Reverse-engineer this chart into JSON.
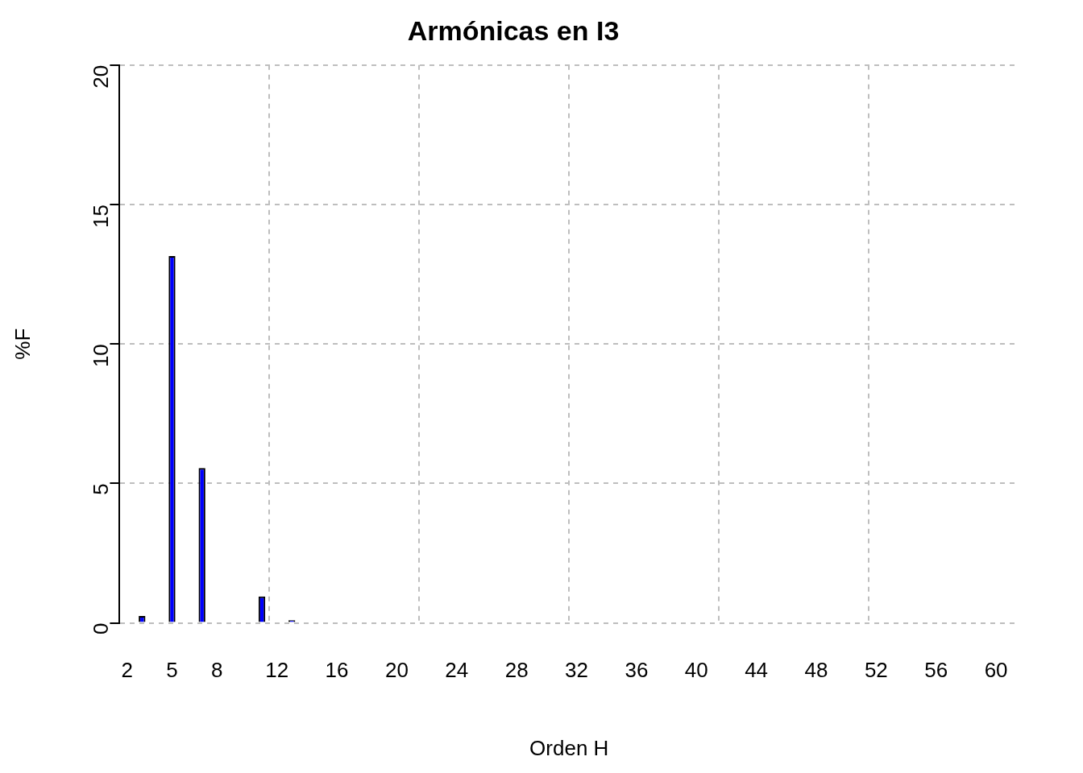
{
  "chart_data": {
    "type": "bar",
    "title": "Armónicas en I3",
    "xlabel": "Orden H",
    "ylabel": "%F",
    "categories": [
      "2",
      null,
      null,
      "5",
      null,
      null,
      "8",
      null,
      null,
      null,
      "12",
      null,
      null,
      null,
      "16",
      null,
      null,
      null,
      "20",
      null,
      null,
      null,
      "24",
      null,
      null,
      null,
      "28",
      null,
      null,
      null,
      "32",
      null,
      null,
      null,
      "36",
      null,
      null,
      null,
      "40",
      null,
      null,
      null,
      "44",
      null,
      null,
      null,
      "48",
      null,
      null,
      null,
      "52",
      null,
      null,
      null,
      "56",
      null,
      null,
      null,
      "60",
      null
    ],
    "values": [
      0,
      0.25,
      0,
      13.15,
      0,
      5.55,
      0,
      0,
      0,
      0.95,
      0,
      0.1,
      0,
      0,
      0,
      0,
      0,
      0,
      0,
      0,
      0,
      0,
      0,
      0,
      0,
      0,
      0,
      0,
      0,
      0,
      0,
      0,
      0,
      0,
      0,
      0,
      0,
      0,
      0,
      0,
      0,
      0,
      0,
      0,
      0,
      0,
      0,
      0,
      0,
      0,
      0,
      0,
      0,
      0,
      0,
      0,
      0,
      0,
      0,
      0
    ],
    "color": "#0000ff",
    "ylim": [
      0,
      20
    ],
    "yticks": [
      0,
      5,
      10,
      15,
      20
    ],
    "grid": true
  }
}
